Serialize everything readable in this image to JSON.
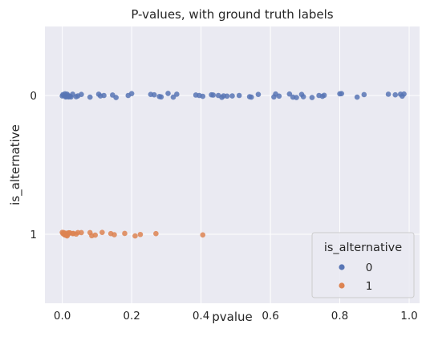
{
  "chart_data": {
    "type": "scatter",
    "title": "P-values, with ground truth labels",
    "xlabel": "pvalue",
    "ylabel": "is_alternative",
    "xlim": [
      -0.05,
      1.03
    ],
    "x_ticks": [
      "0.0",
      "0.2",
      "0.4",
      "0.6",
      "0.8",
      "1.0"
    ],
    "x_tick_values": [
      0.0,
      0.2,
      0.4,
      0.6,
      0.8,
      1.0
    ],
    "y_categories": [
      "0",
      "1"
    ],
    "grid": true,
    "background": "#EAEAF2",
    "legend": {
      "title": "is_alternative",
      "placement": "lower-right",
      "entries": [
        "0",
        "1"
      ]
    },
    "series": [
      {
        "name": "0",
        "category": "0",
        "color": "#5875B5",
        "points": [
          [
            0.0,
            0.02
          ],
          [
            0.002,
            -0.04
          ],
          [
            0.005,
            0.01
          ],
          [
            0.008,
            -0.08
          ],
          [
            0.01,
            0.07
          ],
          [
            0.012,
            0.05
          ],
          [
            0.014,
            -0.06
          ],
          [
            0.016,
            0.0
          ],
          [
            0.018,
            0.07
          ],
          [
            0.02,
            0.04
          ],
          [
            0.022,
            0.03
          ],
          [
            0.025,
            0.07
          ],
          [
            0.03,
            -0.06
          ],
          [
            0.04,
            0.06
          ],
          [
            0.045,
            0.02
          ],
          [
            0.055,
            -0.05
          ],
          [
            0.08,
            0.08
          ],
          [
            0.105,
            -0.06
          ],
          [
            0.11,
            0.02
          ],
          [
            0.12,
            0.0
          ],
          [
            0.145,
            -0.02
          ],
          [
            0.155,
            0.1
          ],
          [
            0.19,
            0.0
          ],
          [
            0.2,
            -0.09
          ],
          [
            0.255,
            -0.05
          ],
          [
            0.265,
            -0.03
          ],
          [
            0.28,
            0.05
          ],
          [
            0.285,
            0.07
          ],
          [
            0.305,
            -0.1
          ],
          [
            0.32,
            0.08
          ],
          [
            0.33,
            -0.06
          ],
          [
            0.385,
            -0.02
          ],
          [
            0.395,
            0.0
          ],
          [
            0.405,
            0.04
          ],
          [
            0.43,
            -0.03
          ],
          [
            0.435,
            -0.02
          ],
          [
            0.45,
            0.0
          ],
          [
            0.46,
            0.09
          ],
          [
            0.465,
            0.02
          ],
          [
            0.475,
            0.03
          ],
          [
            0.49,
            0.02
          ],
          [
            0.51,
            0.0
          ],
          [
            0.54,
            0.06
          ],
          [
            0.545,
            0.08
          ],
          [
            0.565,
            -0.05
          ],
          [
            0.61,
            0.07
          ],
          [
            0.615,
            -0.07
          ],
          [
            0.625,
            0.03
          ],
          [
            0.655,
            -0.07
          ],
          [
            0.665,
            0.08
          ],
          [
            0.675,
            0.1
          ],
          [
            0.69,
            -0.05
          ],
          [
            0.695,
            0.06
          ],
          [
            0.72,
            0.1
          ],
          [
            0.74,
            0.0
          ],
          [
            0.75,
            0.04
          ],
          [
            0.755,
            -0.01
          ],
          [
            0.8,
            -0.08
          ],
          [
            0.805,
            -0.09
          ],
          [
            0.85,
            0.08
          ],
          [
            0.87,
            -0.04
          ],
          [
            0.94,
            -0.06
          ],
          [
            0.96,
            -0.03
          ],
          [
            0.975,
            -0.06
          ],
          [
            0.98,
            0.03
          ],
          [
            0.985,
            -0.07
          ]
        ]
      },
      {
        "name": "1",
        "category": "1",
        "color": "#DD8452",
        "points": [
          [
            0.0,
            -0.09
          ],
          [
            0.002,
            -0.03
          ],
          [
            0.004,
            -0.08
          ],
          [
            0.006,
            0.02
          ],
          [
            0.008,
            -0.01
          ],
          [
            0.009,
            0.04
          ],
          [
            0.01,
            -0.05
          ],
          [
            0.012,
            0.05
          ],
          [
            0.014,
            0.08
          ],
          [
            0.016,
            0.01
          ],
          [
            0.018,
            -0.07
          ],
          [
            0.02,
            -0.05
          ],
          [
            0.022,
            -0.07
          ],
          [
            0.03,
            -0.03
          ],
          [
            0.032,
            -0.04
          ],
          [
            0.04,
            -0.01
          ],
          [
            0.045,
            -0.08
          ],
          [
            0.055,
            -0.08
          ],
          [
            0.08,
            -0.08
          ],
          [
            0.085,
            0.07
          ],
          [
            0.095,
            0.04
          ],
          [
            0.115,
            -0.09
          ],
          [
            0.14,
            -0.03
          ],
          [
            0.15,
            0.02
          ],
          [
            0.18,
            -0.04
          ],
          [
            0.21,
            0.08
          ],
          [
            0.225,
            0.01
          ],
          [
            0.27,
            -0.03
          ],
          [
            0.405,
            0.03
          ]
        ]
      }
    ]
  }
}
